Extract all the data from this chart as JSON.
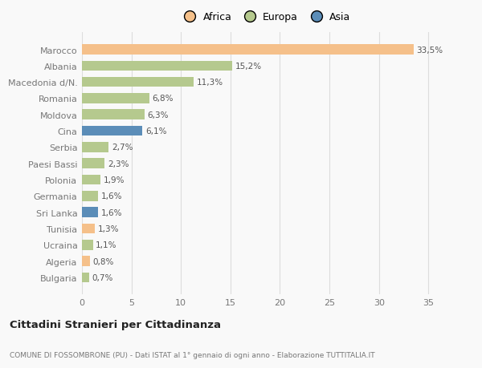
{
  "countries": [
    "Bulgaria",
    "Algeria",
    "Ucraina",
    "Tunisia",
    "Sri Lanka",
    "Germania",
    "Polonia",
    "Paesi Bassi",
    "Serbia",
    "Cina",
    "Moldova",
    "Romania",
    "Macedonia d/N.",
    "Albania",
    "Marocco"
  ],
  "values": [
    0.7,
    0.8,
    1.1,
    1.3,
    1.6,
    1.6,
    1.9,
    2.3,
    2.7,
    6.1,
    6.3,
    6.8,
    11.3,
    15.2,
    33.5
  ],
  "labels": [
    "0,7%",
    "0,8%",
    "1,1%",
    "1,3%",
    "1,6%",
    "1,6%",
    "1,9%",
    "2,3%",
    "2,7%",
    "6,1%",
    "6,3%",
    "6,8%",
    "11,3%",
    "15,2%",
    "33,5%"
  ],
  "colors": [
    "#b5c98e",
    "#f5c08a",
    "#b5c98e",
    "#f5c08a",
    "#5b8db8",
    "#b5c98e",
    "#b5c98e",
    "#b5c98e",
    "#b5c98e",
    "#5b8db8",
    "#b5c98e",
    "#b5c98e",
    "#b5c98e",
    "#b5c98e",
    "#f5c08a"
  ],
  "legend": [
    {
      "label": "Africa",
      "color": "#f5c08a"
    },
    {
      "label": "Europa",
      "color": "#b5c98e"
    },
    {
      "label": "Asia",
      "color": "#5b8db8"
    }
  ],
  "title": "Cittadini Stranieri per Cittadinanza",
  "subtitle": "COMUNE DI FOSSOMBRONE (PU) - Dati ISTAT al 1° gennaio di ogni anno - Elaborazione TUTTITALIA.IT",
  "xlim": [
    0,
    37
  ],
  "xticks": [
    0,
    5,
    10,
    15,
    20,
    25,
    30,
    35
  ],
  "background_color": "#f9f9f9",
  "bar_height": 0.62,
  "grid_color": "#dddddd",
  "label_fontsize": 7.5,
  "tick_fontsize": 8,
  "legend_fontsize": 9
}
